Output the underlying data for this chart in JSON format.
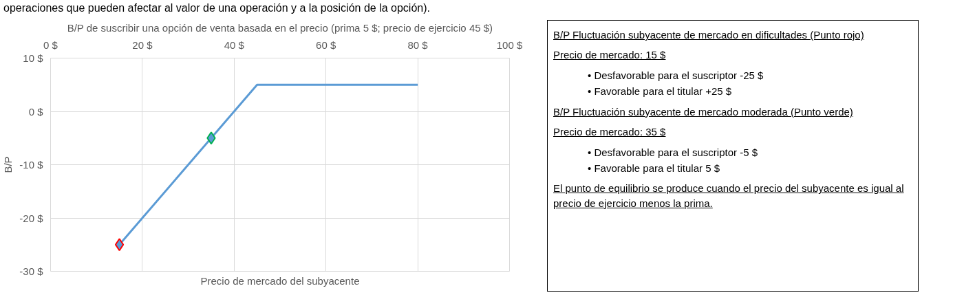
{
  "chart_data": [
    {
      "type": "line",
      "title": "B/P de suscribir una opción de venta basada en el precio (prima 5 $; precio de ejercicio 45 $)",
      "xlabel": "Precio de mercado del subyacente",
      "ylabel": "B/P",
      "xlim": [
        0,
        100
      ],
      "ylim": [
        -30,
        10
      ],
      "xticks": [
        {
          "value": 0,
          "label": "0 $"
        },
        {
          "value": 20,
          "label": "20 $"
        },
        {
          "value": 40,
          "label": "40 $"
        },
        {
          "value": 60,
          "label": "60 $"
        },
        {
          "value": 80,
          "label": "80 $"
        },
        {
          "value": 100,
          "label": "100 $"
        }
      ],
      "yticks": [
        {
          "value": -30,
          "label": "-30 $"
        },
        {
          "value": -20,
          "label": "-20 $"
        },
        {
          "value": -10,
          "label": "-10 $"
        },
        {
          "value": 0,
          "label": "0 $"
        },
        {
          "value": 10,
          "label": "10 $"
        }
      ],
      "grid": true,
      "series": [
        {
          "type": "line",
          "color": "#5b9bd5",
          "x": [
            15,
            45,
            80
          ],
          "values": [
            -25,
            5,
            5
          ]
        },
        {
          "type": "scatter",
          "marker": "diamond",
          "color": "#ff0000",
          "x": [
            15
          ],
          "values": [
            -25
          ]
        },
        {
          "type": "scatter",
          "marker": "diamond",
          "color": "#00b050",
          "x": [
            35
          ],
          "values": [
            -5
          ]
        }
      ]
    },
    {
      "type": "other",
      "annotations": [
        "operaciones que pueden afectar al valor de una operación y a la posición de la opción).",
        "B/P Fluctuación subyacente de mercado en dificultades (Punto rojo)",
        "Precio de mercado: 15 $",
        "• Desfavorable para el suscriptor -25 $",
        "• Favorable para el titular +25 $",
        "B/P Fluctuación subyacente de mercado moderada (Punto verde)",
        "Precio de mercado: 35 $",
        "• Desfavorable para el suscriptor -5 $",
        "• Favorable para el titular 5 $",
        "El punto de equilibrio se produce cuando el precio del subyacente es igual al precio de ejercicio menos la prima."
      ]
    }
  ]
}
